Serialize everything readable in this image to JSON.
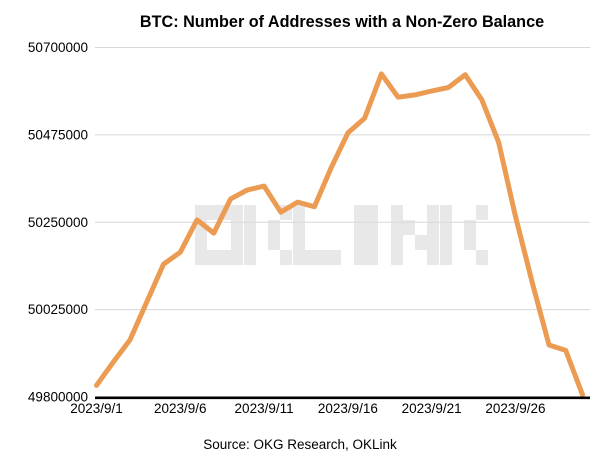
{
  "title": "BTC: Number of Addresses with a Non-Zero Balance",
  "source_caption": "Source: OKG Research, OKLink",
  "watermark": "OKLINK",
  "colors": {
    "line": "#EB9B52",
    "grid": "#D8D8D8",
    "axis": "#000000",
    "text": "#000000",
    "watermark": "#E8E8E8",
    "background": "#FFFFFF"
  },
  "chart_data": {
    "type": "line",
    "title": "BTC: Number of Addresses with a Non-Zero Balance",
    "xlabel": "",
    "ylabel": "",
    "legend": "none",
    "grid": "horizontal",
    "ylim": [
      49800000,
      50700000
    ],
    "y_ticks": [
      49800000,
      50025000,
      50250000,
      50475000,
      50700000
    ],
    "x_tick_labels": [
      "2023/9/1",
      "2023/9/6",
      "2023/9/11",
      "2023/9/16",
      "2023/9/21",
      "2023/9/26"
    ],
    "x": [
      "2023/9/1",
      "2023/9/2",
      "2023/9/3",
      "2023/9/4",
      "2023/9/5",
      "2023/9/6",
      "2023/9/7",
      "2023/9/8",
      "2023/9/9",
      "2023/9/10",
      "2023/9/11",
      "2023/9/12",
      "2023/9/13",
      "2023/9/14",
      "2023/9/15",
      "2023/9/16",
      "2023/9/17",
      "2023/9/18",
      "2023/9/19",
      "2023/9/20",
      "2023/9/21",
      "2023/9/22",
      "2023/9/23",
      "2023/9/24",
      "2023/9/25",
      "2023/9/26",
      "2023/9/27",
      "2023/9/28",
      "2023/9/29",
      "2023/9/30"
    ],
    "values": [
      49830000,
      49890000,
      49947000,
      50045000,
      50142000,
      50173000,
      50256000,
      50222000,
      50310000,
      50333000,
      50343000,
      50276000,
      50302000,
      50290000,
      50390000,
      50480000,
      50518000,
      50632000,
      50572000,
      50578000,
      50588000,
      50597000,
      50630000,
      50565000,
      50455000,
      50265000,
      50095000,
      49934000,
      49920000,
      49806000
    ]
  }
}
